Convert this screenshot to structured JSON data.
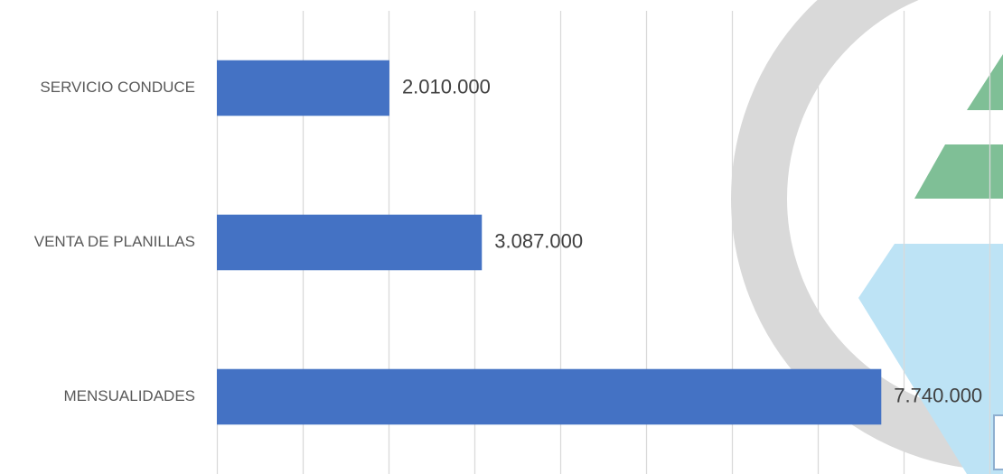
{
  "chart_data": {
    "type": "bar",
    "orientation": "horizontal",
    "categories": [
      "SERVICIO CONDUCE",
      "VENTA DE PLANILLAS",
      "MENSUALIDADES"
    ],
    "values": [
      2010000,
      3087000,
      7740000
    ],
    "data_labels": [
      "2.010.000",
      "3.087.000",
      "7.740.000"
    ],
    "title": "",
    "xlabel": "",
    "ylabel": "",
    "xlim": [
      0,
      9000000
    ],
    "x_major_unit": 1000000,
    "grid": "vertical",
    "legend": "none",
    "bar_color": "#4472C4"
  },
  "colors": {
    "gridline": "#D9D9D9",
    "watermark_ring": "#D9D9D9",
    "watermark_green": "#7FBF96",
    "watermark_lightblue": "#BDE3F5"
  },
  "icons": {
    "watermark": "logo-watermark"
  }
}
